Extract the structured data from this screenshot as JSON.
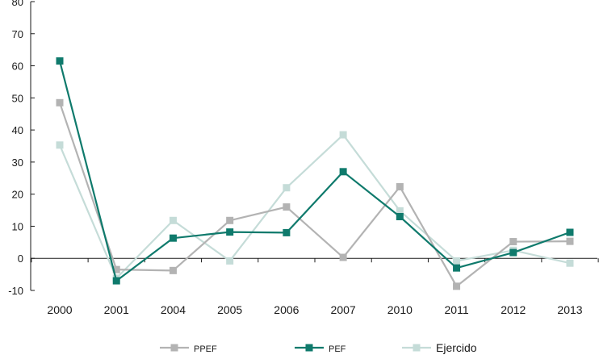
{
  "chart_data": {
    "type": "line",
    "title": "",
    "xlabel": "",
    "ylabel": "",
    "categories": [
      "2000",
      "2001",
      "2004",
      "2005",
      "2006",
      "2007",
      "2010",
      "2011",
      "2012",
      "2013"
    ],
    "ylim": [
      -10,
      80
    ],
    "yticks": [
      80,
      70,
      60,
      50,
      40,
      30,
      20,
      10,
      0,
      -10
    ],
    "grid": false,
    "legend_position": "bottom",
    "series": [
      {
        "name": "PPEF",
        "color": "#b3b3b3",
        "values": [
          48.5,
          -3.5,
          -3.8,
          11.8,
          16.0,
          0.3,
          22.3,
          -8.7,
          5.2,
          5.3
        ]
      },
      {
        "name": "PEF",
        "color": "#0f7a6c",
        "values": [
          61.5,
          -7.0,
          6.3,
          8.2,
          8.0,
          27.0,
          13.0,
          -3.0,
          1.8,
          8.1
        ]
      },
      {
        "name": "Ejercido",
        "color": "#c5dcd8",
        "values": [
          35.3,
          -6.2,
          11.8,
          -0.8,
          22.0,
          38.5,
          14.8,
          -0.8,
          2.5,
          -1.5
        ]
      }
    ]
  }
}
